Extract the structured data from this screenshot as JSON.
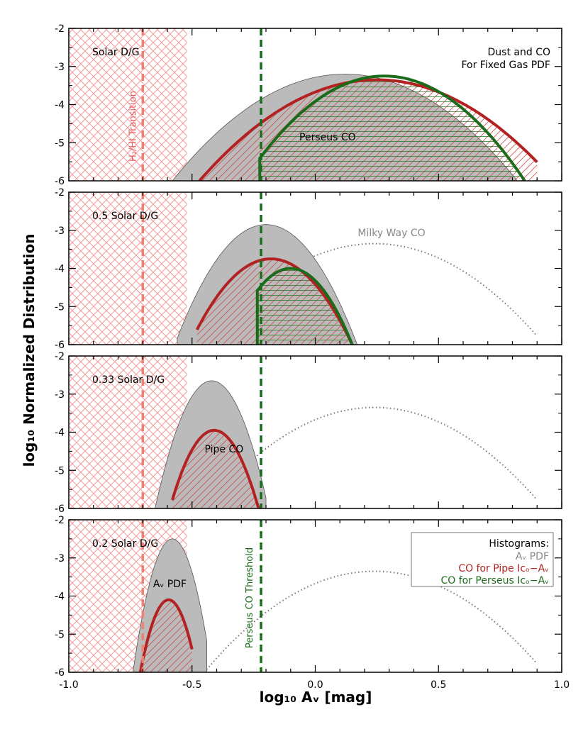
{
  "chart_data": {
    "type": "area",
    "xlabel": "log₁₀ Aᵥ [mag]",
    "ylabel": "log₁₀ Normalized Distribution",
    "xlim": [
      -1.0,
      1.0
    ],
    "ylim": [
      -6,
      -2
    ],
    "x_ticks": [
      "-1.0",
      "-0.5",
      "0.0",
      "0.5",
      "1.0"
    ],
    "y_ticks": [
      "-2",
      "-3",
      "-4",
      "-5",
      "-6"
    ],
    "h2_transition_x": -0.7,
    "h2_transition_label": "H₂/HI Transition",
    "co_threshold_x": -0.22,
    "co_threshold_label": "Perseus CO Threshold",
    "shaded_region": [
      -1.0,
      -0.52
    ],
    "milky_way_co": {
      "label": "Milky Way CO",
      "peak": [
        0.24,
        -3.35
      ],
      "x_range": [
        -0.45,
        0.9
      ]
    },
    "legend": {
      "title": "Histograms:",
      "entries": [
        {
          "label": "Aᵥ PDF",
          "color": "#888888"
        },
        {
          "label": "CO for Pipe Iᴄₒ−Aᵥ",
          "color": "#b22222"
        },
        {
          "label": "CO for Perseus Iᴄₒ−Aᵥ",
          "color": "#1a6b1a"
        }
      ]
    },
    "panels": [
      {
        "label": "Solar D/G",
        "annotation_lines": [
          "Dust and CO",
          "For Fixed Gas PDF"
        ],
        "inner_label": "Perseus CO",
        "av_pdf": {
          "x_range": [
            -0.58,
            0.82
          ],
          "peak": [
            0.12,
            -3.2
          ]
        },
        "pipe_co": {
          "x_range": [
            -0.47,
            0.9
          ],
          "peak": [
            0.25,
            -3.35
          ]
        },
        "perseus_co": {
          "x_range": [
            -0.225,
            0.85
          ],
          "peak": [
            0.28,
            -3.25
          ]
        }
      },
      {
        "label": "0.5 Solar D/G",
        "inner_label": "Milky Way CO",
        "av_pdf": {
          "x_range": [
            -0.56,
            0.17
          ],
          "peak": [
            -0.2,
            -2.85
          ]
        },
        "pipe_co": {
          "x_range": [
            -0.48,
            0.15
          ],
          "peak": [
            -0.18,
            -3.75
          ]
        },
        "perseus_co": {
          "x_range": [
            -0.235,
            0.15
          ],
          "peak": [
            -0.1,
            -4.0
          ]
        }
      },
      {
        "label": "0.33 Solar D/G",
        "inner_label": "Pipe CO",
        "av_pdf": {
          "x_range": [
            -0.65,
            -0.2
          ],
          "peak": [
            -0.42,
            -2.65
          ]
        },
        "pipe_co": {
          "x_range": [
            -0.58,
            -0.23
          ],
          "peak": [
            -0.41,
            -3.95
          ]
        }
      },
      {
        "label": "0.2 Solar D/G",
        "inner_label": "Aᵥ PDF",
        "av_pdf": {
          "x_range": [
            -0.74,
            -0.44
          ],
          "peak": [
            -0.58,
            -2.5
          ]
        },
        "pipe_co": {
          "x_range": [
            -0.71,
            -0.5
          ],
          "peak": [
            -0.595,
            -4.1
          ]
        }
      }
    ]
  }
}
